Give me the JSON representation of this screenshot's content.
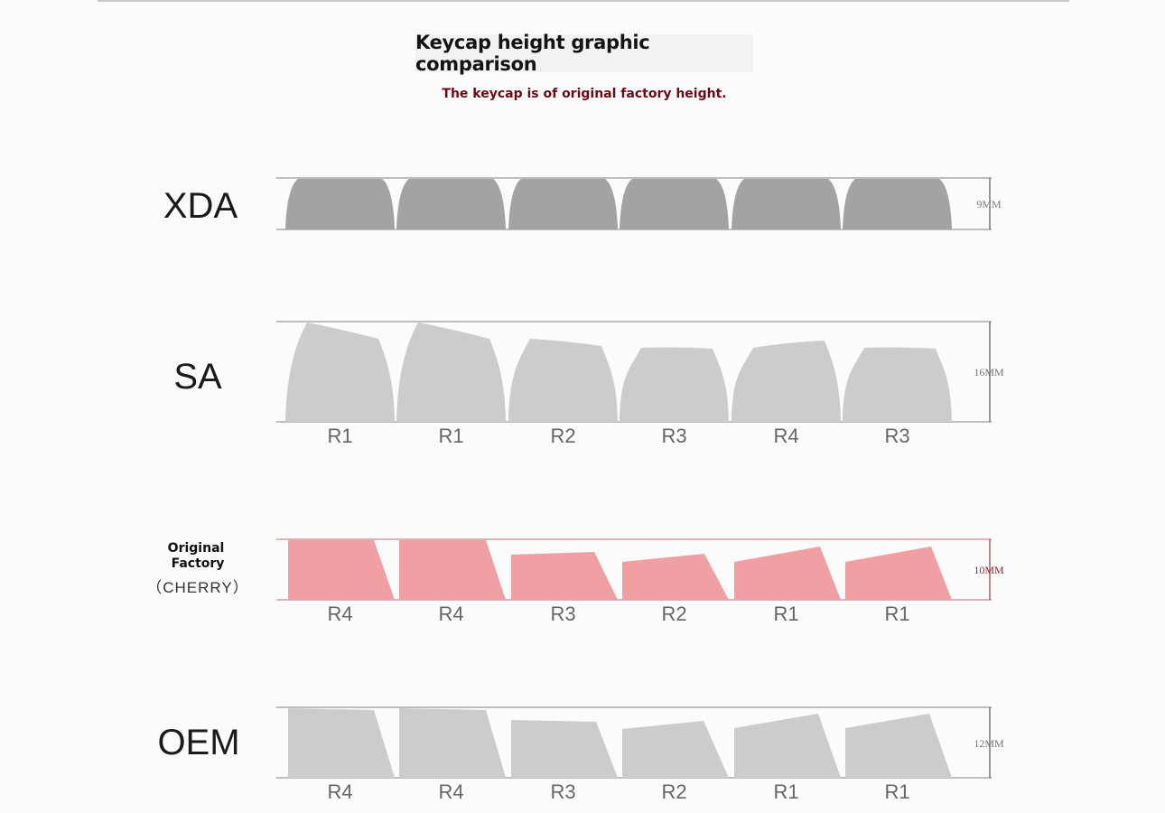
{
  "title": "Keycap height graphic comparison",
  "subtitle": "The keycap is of original factory height.",
  "colors": {
    "xda_fill": "#a3a3a3",
    "gray_fill": "#cccccc",
    "cherry_fill": "#f0a0a2",
    "guide": "#9a9a9a",
    "cherry_guide": "#c98a8c",
    "cherry_height_text": "#a11f2c",
    "height_text": "#777777",
    "subtitle": "#6b0a14"
  },
  "profiles": [
    {
      "id": "xda",
      "name": "XDA",
      "height": "9MM",
      "keycap_rows": []
    },
    {
      "id": "sa",
      "name": "SA",
      "height": "16MM",
      "keycap_rows": [
        "R1",
        "R1",
        "R2",
        "R3",
        "R4",
        "R3"
      ]
    },
    {
      "id": "cherry",
      "name_lines": [
        "Original",
        "Factory"
      ],
      "name": "（CHERRY）",
      "height": "10MM",
      "keycap_rows": [
        "R4",
        "R4",
        "R3",
        "R2",
        "R1",
        "R1"
      ]
    },
    {
      "id": "oem",
      "name": "OEM",
      "height": "12MM",
      "keycap_rows": [
        "R4",
        "R4",
        "R3",
        "R2",
        "R1",
        "R1"
      ]
    }
  ]
}
